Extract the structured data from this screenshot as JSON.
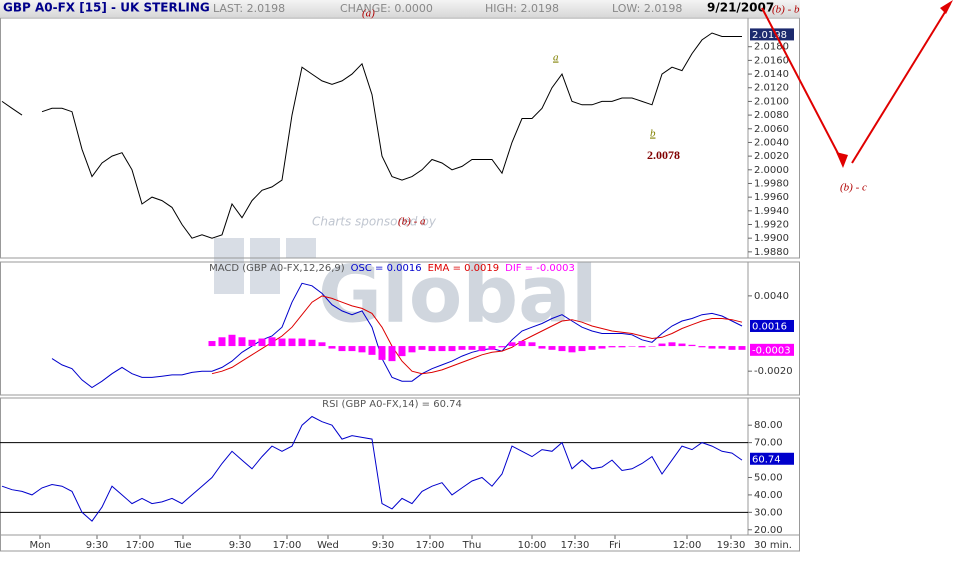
{
  "header": {
    "title": "GBP A0-FX [15] - UK STERLING",
    "last": "LAST: 2.0198",
    "change": "CHANGE: 0.0000",
    "high": "HIGH: 2.0198",
    "low": "LOW: 2.0198",
    "date": "9/21/2007"
  },
  "annotations": [
    "(a)",
    "(b) - b",
    "a",
    "b",
    "2.0078",
    "(b) - a",
    "(b) - c"
  ],
  "watermark": [
    "Charts sponsored by",
    "Global"
  ],
  "chart_data": [
    {
      "type": "line",
      "color": "#000000",
      "values": [
        2.01,
        2.009,
        2.008,
        null,
        2.0085,
        2.009,
        2.009,
        2.0085,
        2.003,
        1.999,
        2.001,
        2.002,
        2.0025,
        2.0,
        1.995,
        1.996,
        1.9955,
        1.9945,
        1.992,
        1.99,
        1.9905,
        1.99,
        1.9905,
        1.995,
        1.993,
        1.9955,
        1.997,
        1.9975,
        1.9985,
        2.008,
        2.015,
        2.014,
        2.013,
        2.0125,
        2.013,
        2.014,
        2.0155,
        2.011,
        2.002,
        1.999,
        1.9985,
        1.999,
        2.0,
        2.0015,
        2.001,
        2.0,
        2.0005,
        2.0015,
        2.0015,
        2.0015,
        1.9995,
        2.004,
        2.0075,
        2.0075,
        2.009,
        2.012,
        2.014,
        2.01,
        2.0095,
        2.0095,
        2.01,
        2.01,
        2.0105,
        2.0105,
        2.01,
        2.0095,
        2.014,
        2.015,
        2.0145,
        2.017,
        2.019,
        2.02,
        2.0195,
        2.0195,
        2.0195
      ],
      "xlim": [
        -0.2,
        74.6
      ],
      "ylim": [
        1.9871,
        2.0222
      ],
      "yticks": [
        {
          "value": 2.018,
          "label": "2.0180"
        },
        {
          "value": 2.016,
          "label": "2.0160"
        },
        {
          "value": 2.014,
          "label": "2.0140"
        },
        {
          "value": 2.012,
          "label": "2.0120"
        },
        {
          "value": 2.01,
          "label": "2.0100"
        },
        {
          "value": 2.008,
          "label": "2.0080"
        },
        {
          "value": 2.006,
          "label": "2.0060"
        },
        {
          "value": 2.004,
          "label": "2.0040"
        },
        {
          "value": 2.002,
          "label": "2.0020"
        },
        {
          "value": 2.0,
          "label": "2.0000"
        },
        {
          "value": 1.998,
          "label": "1.9980"
        },
        {
          "value": 1.996,
          "label": "1.9960"
        },
        {
          "value": 1.994,
          "label": "1.9940"
        },
        {
          "value": 1.992,
          "label": "1.9920"
        },
        {
          "value": 1.99,
          "label": "1.9900"
        },
        {
          "value": 1.988,
          "label": "1.9880"
        }
      ],
      "boxes": [
        {
          "value": 2.0198,
          "label": "2.0198",
          "color": "#1c2a6e"
        }
      ]
    },
    {
      "type": "line",
      "title": "MACD (GBP A0-FX,12,26,9)",
      "series": [
        {
          "name": "OSC = 0.0016",
          "color": "#0000cc",
          "kind": "line",
          "values": [
            null,
            null,
            null,
            null,
            null,
            -0.001,
            -0.0015,
            -0.0018,
            -0.0027,
            -0.0033,
            -0.0028,
            -0.0022,
            -0.0017,
            -0.0022,
            -0.0025,
            -0.0025,
            -0.0024,
            -0.0023,
            -0.0023,
            -0.0021,
            -0.002,
            -0.002,
            -0.0017,
            -0.0012,
            -0.0005,
            0.0,
            0.0005,
            0.0008,
            0.0015,
            0.0035,
            0.005,
            0.0048,
            0.0042,
            0.0033,
            0.0028,
            0.0025,
            0.0028,
            0.0015,
            -0.001,
            -0.0025,
            -0.0028,
            -0.0028,
            -0.0022,
            -0.0018,
            -0.0015,
            -0.0012,
            -0.0008,
            -0.0005,
            -0.0003,
            -0.0002,
            -0.0004,
            0.0005,
            0.0012,
            0.0015,
            0.0018,
            0.0022,
            0.0025,
            0.002,
            0.0015,
            0.0012,
            0.001,
            0.001,
            0.001,
            0.0009,
            0.0005,
            0.0003,
            0.001,
            0.0016,
            0.002,
            0.0022,
            0.0025,
            0.0026,
            0.0024,
            0.002,
            0.0016
          ]
        },
        {
          "name": "EMA = 0.0019",
          "color": "#dd0000",
          "kind": "line",
          "values": [
            null,
            null,
            null,
            null,
            null,
            null,
            null,
            null,
            null,
            null,
            null,
            null,
            null,
            null,
            null,
            null,
            null,
            null,
            null,
            null,
            null,
            -0.0022,
            -0.002,
            -0.0017,
            -0.0012,
            -0.0007,
            -0.0002,
            0.0003,
            0.0008,
            0.0015,
            0.0025,
            0.0035,
            0.004,
            0.0038,
            0.0035,
            0.0032,
            0.003,
            0.0026,
            0.0015,
            0.0,
            -0.0012,
            -0.002,
            -0.0022,
            -0.0021,
            -0.0019,
            -0.0016,
            -0.0013,
            -0.001,
            -0.0007,
            -0.0005,
            -0.0004,
            -0.0001,
            0.0004,
            0.0008,
            0.0012,
            0.0016,
            0.002,
            0.0021,
            0.0019,
            0.0016,
            0.0014,
            0.0012,
            0.0011,
            0.001,
            0.0008,
            0.0006,
            0.0007,
            0.001,
            0.0014,
            0.0017,
            0.002,
            0.0022,
            0.0022,
            0.0021,
            0.0019
          ]
        },
        {
          "name": "DIF = -0.0003",
          "color": "#ff00ff",
          "kind": "histogram",
          "values": [
            null,
            null,
            null,
            null,
            null,
            null,
            null,
            null,
            null,
            null,
            null,
            null,
            null,
            null,
            null,
            null,
            null,
            null,
            null,
            null,
            null,
            0.0004,
            0.0007,
            0.0009,
            0.0007,
            0.0005,
            0.0006,
            0.0007,
            0.0006,
            0.0006,
            0.0006,
            0.0005,
            0.0003,
            -0.0002,
            -0.0004,
            -0.0004,
            -0.0005,
            -0.0007,
            -0.0011,
            -0.0012,
            -0.0008,
            -0.0005,
            -0.0003,
            -0.0004,
            -0.0004,
            -0.0004,
            -0.0003,
            -0.0003,
            -0.0004,
            -0.0003,
            -0.0001,
            0.0003,
            0.0004,
            0.0003,
            -0.0002,
            -0.0003,
            -0.0004,
            -0.0005,
            -0.0004,
            -0.0003,
            -0.0002,
            -0.0001,
            -0.0001,
            0.0,
            -0.0001,
            0.0,
            0.0002,
            0.0003,
            0.0002,
            0.0001,
            -0.0001,
            -0.0002,
            -0.0002,
            -0.0003,
            -0.0003
          ]
        }
      ],
      "xlim": [
        -0.2,
        74.6
      ],
      "ylim": [
        -0.0039,
        0.0067
      ],
      "yticks": [
        {
          "value": 0.004,
          "label": "0.0040"
        },
        {
          "value": -0.002,
          "label": "-0.0020"
        }
      ],
      "boxes": [
        {
          "value": 0.0016,
          "label": "0.0016",
          "color": "#0000cc"
        },
        {
          "value": -0.0003,
          "label": "-0.0003",
          "color": "#ff00ff"
        }
      ]
    },
    {
      "type": "line",
      "title": "RSI (GBP A0-FX,14) = 60.74",
      "color": "#0000cc",
      "values": [
        45,
        43,
        42,
        40,
        44,
        46,
        45,
        42,
        30,
        25,
        33,
        45,
        40,
        35,
        38,
        35,
        36,
        38,
        35,
        40,
        45,
        50,
        58,
        65,
        60,
        55,
        62,
        68,
        65,
        68,
        80,
        85,
        82,
        80,
        72,
        74,
        73,
        72,
        35,
        32,
        38,
        35,
        42,
        45,
        47,
        40,
        44,
        48,
        50,
        45,
        52,
        68,
        65,
        62,
        66,
        65,
        70,
        55,
        60,
        55,
        56,
        60,
        54,
        55,
        58,
        62,
        52,
        60,
        68,
        66,
        70,
        68,
        65,
        64,
        60
      ],
      "xlim": [
        -0.2,
        74.6
      ],
      "ylim": [
        17,
        95.6
      ],
      "yticks": [
        {
          "value": 80,
          "label": "80.00"
        },
        {
          "value": 70,
          "label": "70.00"
        },
        {
          "value": 50,
          "label": "50.00"
        },
        {
          "value": 40,
          "label": "40.00"
        },
        {
          "value": 30,
          "label": "30.00"
        },
        {
          "value": 20,
          "label": "20.00"
        }
      ],
      "hlines": [
        70,
        30
      ],
      "boxes": [
        {
          "value": 60.74,
          "label": "60.74",
          "color": "#0000cc"
        }
      ],
      "xlabel": "30 min.",
      "xticks": [
        {
          "value": 3.8,
          "label": "Mon"
        },
        {
          "value": 9.5,
          "label": "9:30"
        },
        {
          "value": 13.8,
          "label": "17:00"
        },
        {
          "value": 18.1,
          "label": "Tue"
        },
        {
          "value": 23.8,
          "label": "9:30"
        },
        {
          "value": 28.5,
          "label": "17:00"
        },
        {
          "value": 32.6,
          "label": "Wed"
        },
        {
          "value": 38.1,
          "label": "9:30"
        },
        {
          "value": 42.8,
          "label": "17:00"
        },
        {
          "value": 47,
          "label": "Thu"
        },
        {
          "value": 53,
          "label": "10:00"
        },
        {
          "value": 57.3,
          "label": "17:30"
        },
        {
          "value": 61.3,
          "label": "Fri"
        },
        {
          "value": 68.5,
          "label": "12:00"
        },
        {
          "value": 72.9,
          "label": "19:30"
        }
      ]
    }
  ]
}
